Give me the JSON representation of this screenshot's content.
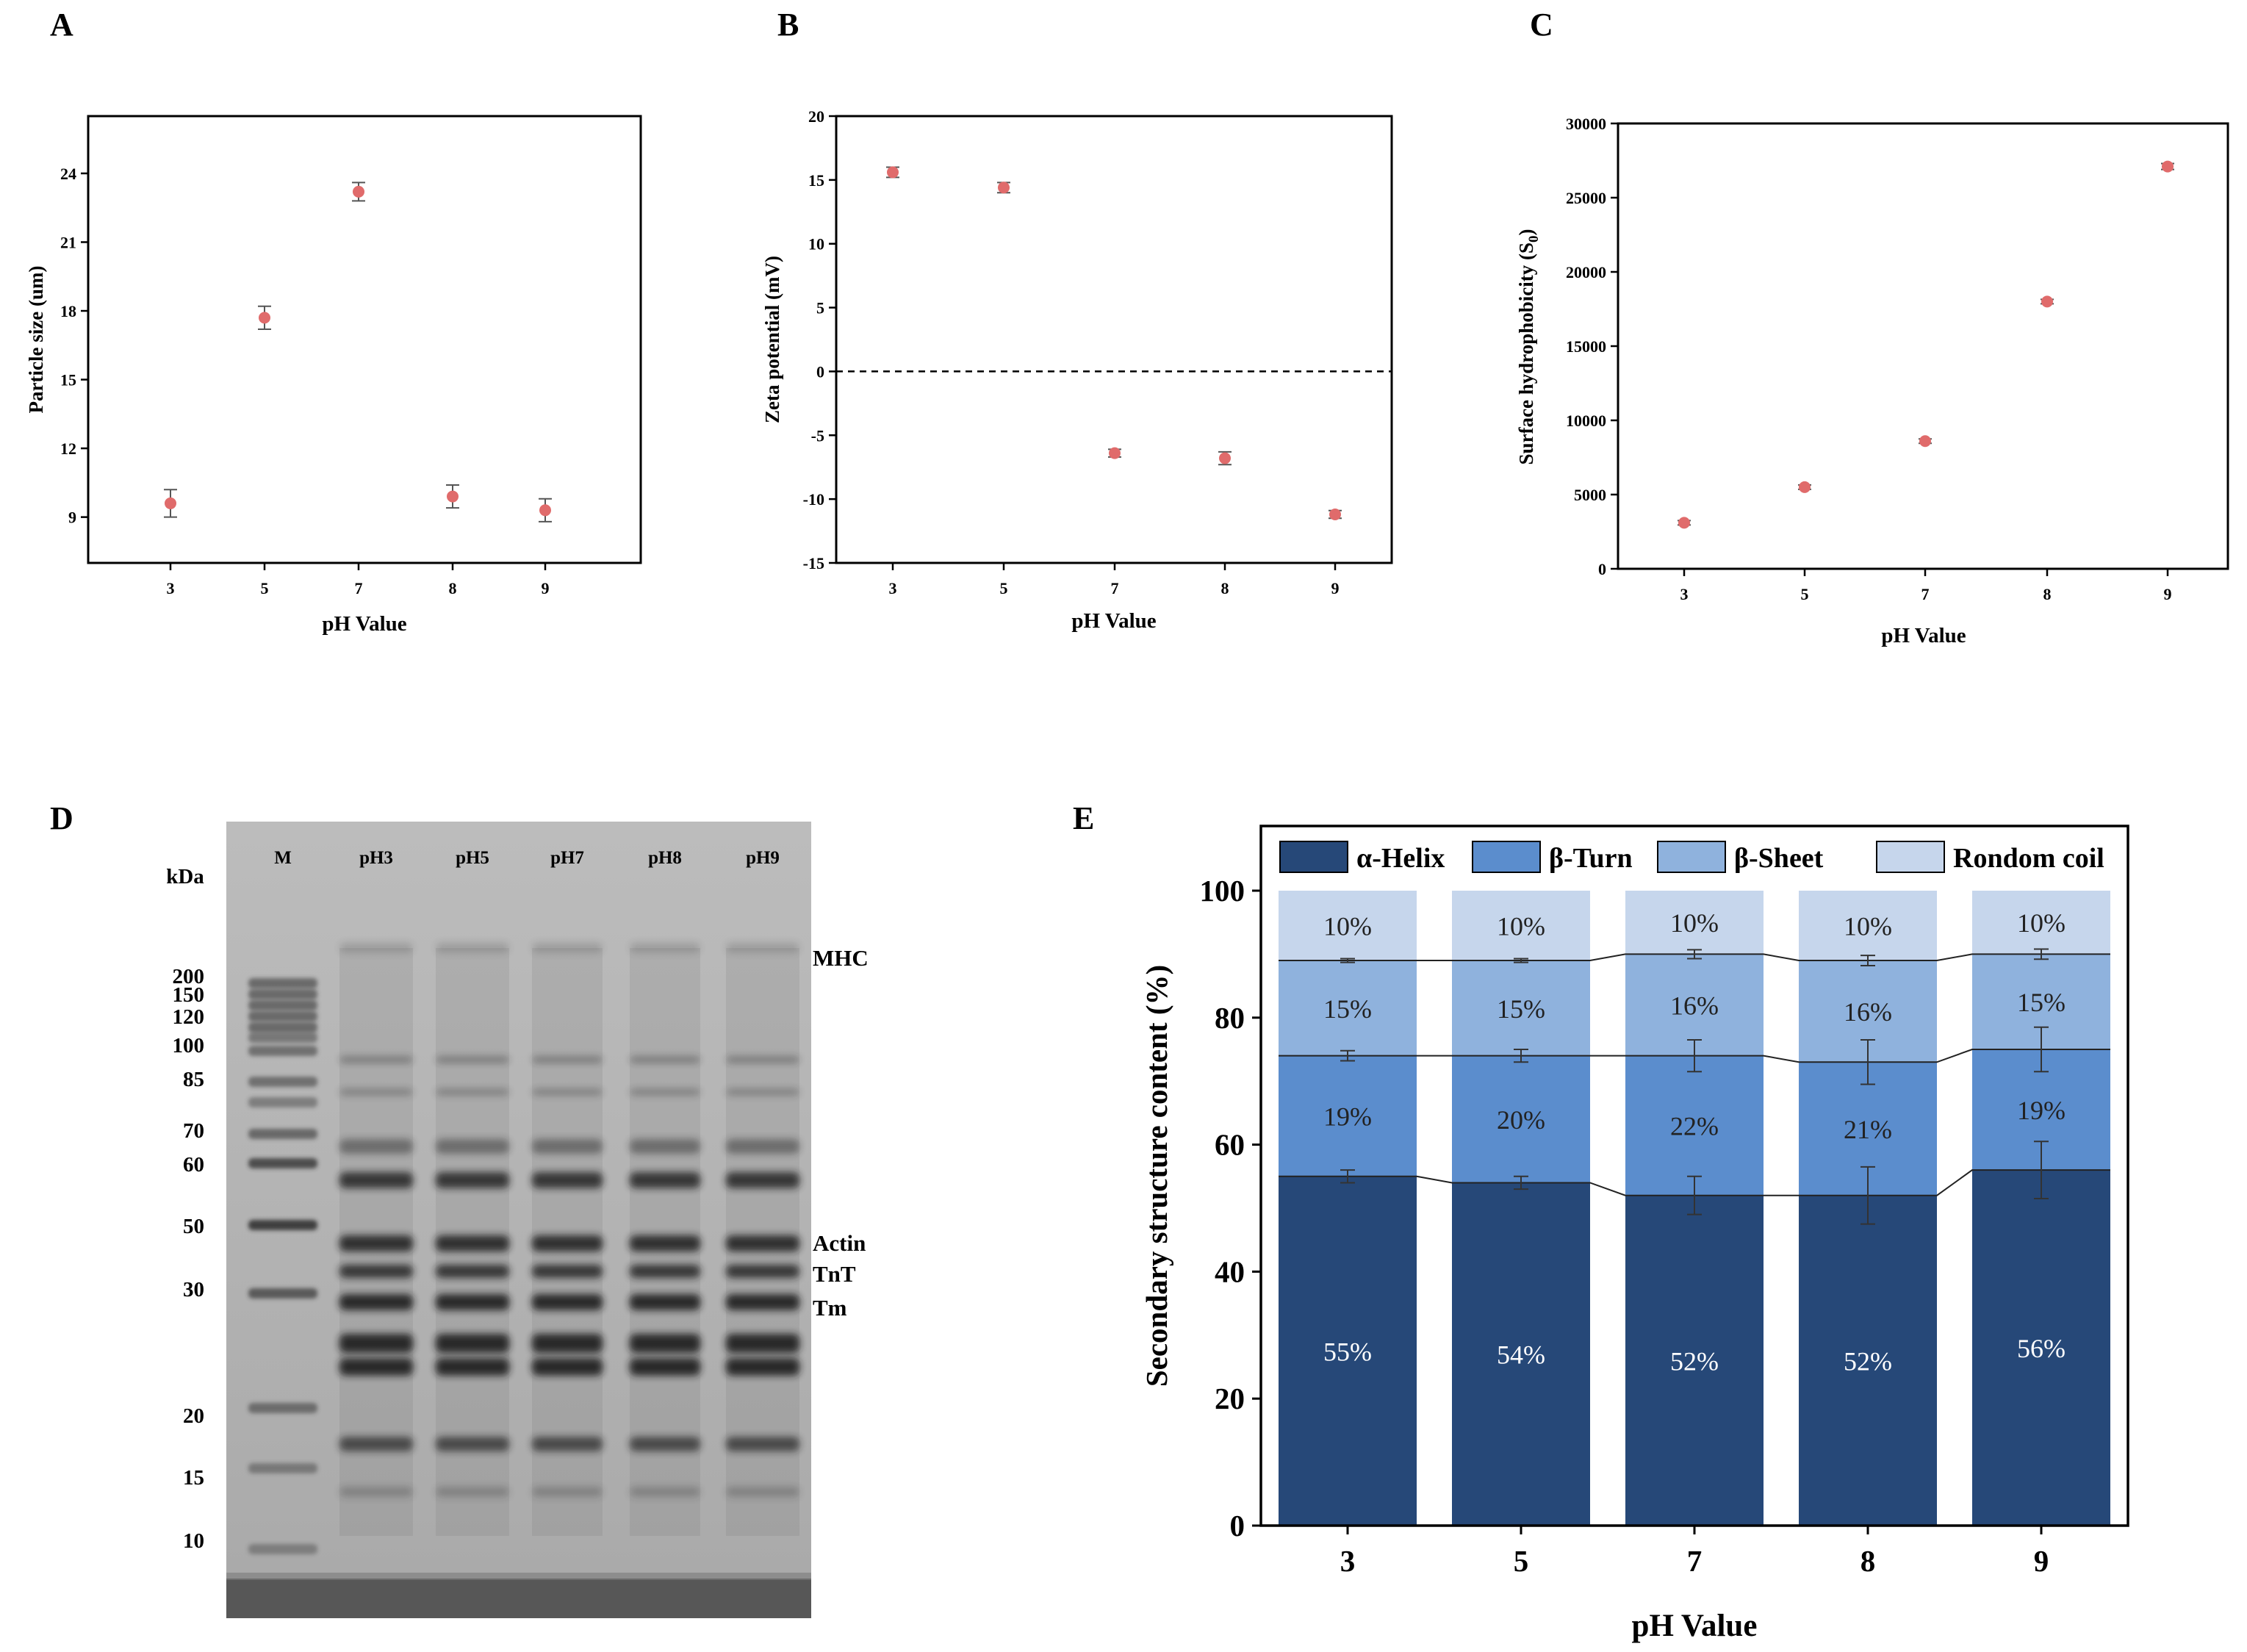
{
  "panel_labels": [
    "A",
    "B",
    "C",
    "D",
    "E"
  ],
  "colors": {
    "marker": "#e06b6b",
    "alpha_helix": "#264878",
    "beta_turn": "#5b8dcd",
    "beta_sheet": "#8fb2dd",
    "random_coil": "#c6d6ec"
  },
  "chart_data": [
    {
      "panel": "A",
      "type": "scatter",
      "title": "",
      "xlabel": "pH Value",
      "ylabel": "Particle size (um)",
      "categories": [
        "3",
        "5",
        "7",
        "8",
        "9"
      ],
      "values": [
        9.6,
        17.7,
        23.2,
        9.9,
        9.3
      ],
      "errors": [
        0.6,
        0.5,
        0.4,
        0.5,
        0.5
      ],
      "yticks": [
        "9",
        "12",
        "15",
        "18",
        "21",
        "24"
      ],
      "ylim": [
        7,
        26.5
      ]
    },
    {
      "panel": "B",
      "type": "scatter",
      "title": "",
      "xlabel": "pH Value",
      "ylabel": "Zeta potential (mV)",
      "categories": [
        "3",
        "5",
        "7",
        "8",
        "9"
      ],
      "values": [
        15.6,
        14.4,
        -6.4,
        -6.8,
        -11.2
      ],
      "errors": [
        0.4,
        0.4,
        0.3,
        0.5,
        0.3
      ],
      "yticks": [
        "-15",
        "-10",
        "-5",
        "0",
        "5",
        "10",
        "15",
        "20"
      ],
      "ylim": [
        -15,
        20
      ],
      "reference_line": 0
    },
    {
      "panel": "C",
      "type": "scatter",
      "title": "",
      "xlabel": "pH Value",
      "ylabel": "Surface hydrophobicity (S",
      "ylabel_sub": "0",
      "ylabel_close": ")",
      "categories": [
        "3",
        "5",
        "7",
        "8",
        "9"
      ],
      "values": [
        3100,
        5500,
        8600,
        18000,
        27100
      ],
      "errors": [
        150,
        150,
        150,
        150,
        200
      ],
      "yticks": [
        "0",
        "5000",
        "10000",
        "15000",
        "20000",
        "25000",
        "30000"
      ],
      "ylim": [
        0,
        30000
      ]
    },
    {
      "panel": "E",
      "type": "bar",
      "stacked": true,
      "title": "",
      "xlabel": "pH Value",
      "ylabel": "Secondary structure content (%)",
      "categories": [
        "3",
        "5",
        "7",
        "8",
        "9"
      ],
      "yticks": [
        "0",
        "20",
        "40",
        "60",
        "80",
        "100"
      ],
      "ylim": [
        0,
        100
      ],
      "legend_position": "top",
      "series": [
        {
          "name": "α-Helix",
          "values": [
            55,
            54,
            52,
            52,
            56
          ],
          "labels": [
            "55%",
            "54%",
            "52%",
            "52%",
            "56%"
          ],
          "errors": [
            1,
            1,
            3,
            4.5,
            4.5
          ]
        },
        {
          "name": "β-Turn",
          "values": [
            19,
            20,
            22,
            21,
            19
          ],
          "labels": [
            "19%",
            "20%",
            "22%",
            "21%",
            "19%"
          ],
          "errors": [
            0.8,
            1,
            2.5,
            3.5,
            3.5
          ]
        },
        {
          "name": "β-Sheet",
          "values": [
            15,
            15,
            16,
            16,
            15
          ],
          "labels": [
            "15%",
            "15%",
            "16%",
            "16%",
            "15%"
          ],
          "errors": [
            0.3,
            0.3,
            0.7,
            0.8,
            0.8
          ]
        },
        {
          "name": "Rondom coil",
          "values": [
            10,
            10,
            10,
            10,
            10
          ],
          "labels": [
            "10%",
            "10%",
            "10%",
            "10%",
            "10%"
          ],
          "errors": [
            0.2,
            0.2,
            0.3,
            0.3,
            0.3
          ]
        }
      ]
    }
  ],
  "gel": {
    "lane_labels": [
      "M",
      "pH3",
      "pH5",
      "pH7",
      "pH8",
      "pH9"
    ],
    "unit_label": "kDa",
    "marker_labels": [
      "200",
      "150",
      "120",
      "100",
      "85",
      "70",
      "60",
      "50",
      "30",
      "20",
      "15",
      "10"
    ],
    "band_labels": [
      "MHC",
      "Actin",
      "TnT",
      "Tm"
    ]
  }
}
